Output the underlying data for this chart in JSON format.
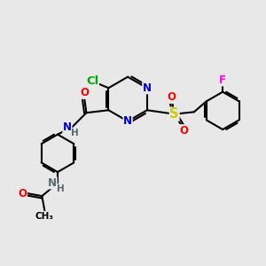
{
  "bg_color": "#e8e8e8",
  "bond_color": "#000000",
  "bond_width": 1.5,
  "atom_colors": {
    "N": "#0000cc",
    "O": "#ff0000",
    "Cl": "#00aa00",
    "S": "#cccc00",
    "F": "#ff00ff",
    "H": "#556b6b",
    "C": "#000000"
  },
  "font_size": 8.5,
  "fig_size": [
    3.0,
    3.0
  ],
  "dpi": 100
}
